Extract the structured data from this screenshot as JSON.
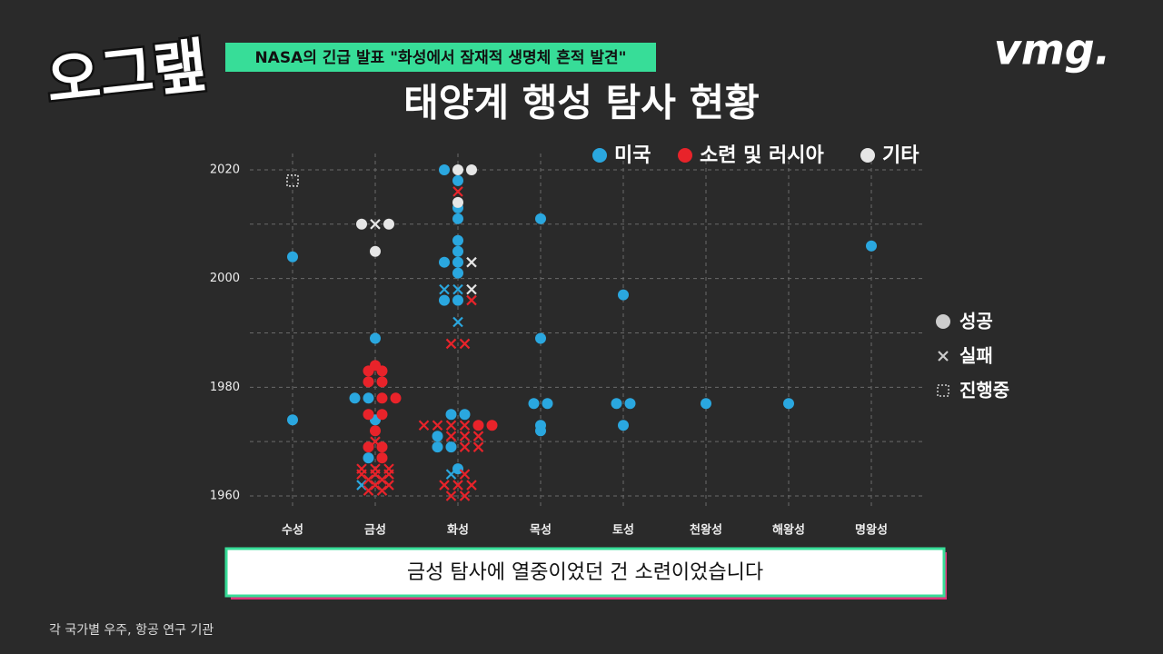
{
  "logo": "오그랲",
  "brand": "vmg.",
  "headline": "NASA의 긴급 발표 \"화성에서 잠재적 생명체 흔적 발견\"",
  "caption": "금성 탐사에 열중이었던 건 소련이었습니다",
  "source": "각 국가별 우주, 항공 연구 기관",
  "chart_data": {
    "type": "scatter",
    "title": "태양계 행성 탐사 현황",
    "categories": [
      "수성",
      "금성",
      "화성",
      "목성",
      "토성",
      "천왕성",
      "해왕성",
      "명왕성"
    ],
    "ylim": [
      1958,
      2023
    ],
    "yticks": [
      1960,
      1980,
      2000,
      2020
    ],
    "ygrid": [
      1960,
      1970,
      1980,
      1990,
      2000,
      2010,
      2020
    ],
    "grid": true,
    "marker_legend": [
      {
        "label": "성공",
        "shape": "circle"
      },
      {
        "label": "실패",
        "shape": "cross"
      },
      {
        "label": "진행중",
        "shape": "square"
      }
    ],
    "series": [
      {
        "name": "미국",
        "color": "#2aa7df",
        "categories": [
          "수성",
          "수성",
          "금성",
          "금성",
          "금성",
          "금성",
          "금성",
          "금성",
          "화성",
          "화성",
          "화성",
          "화성",
          "화성",
          "화성",
          "화성",
          "화성",
          "화성",
          "화성",
          "화성",
          "화성",
          "화성",
          "화성",
          "화성",
          "화성",
          "화성",
          "화성",
          "화성",
          "화성",
          "화성",
          "목성",
          "목성",
          "목성",
          "목성",
          "목성",
          "목성",
          "토성",
          "토성",
          "토성",
          "토성",
          "천왕성",
          "해왕성",
          "명왕성"
        ],
        "values": [
          1974,
          2004,
          1962,
          1967,
          1974,
          1978,
          1978,
          1989,
          1964,
          1965,
          1969,
          1969,
          1971,
          1975,
          1975,
          1992,
          1996,
          1996,
          1998,
          1998,
          2001,
          2003,
          2003,
          2005,
          2007,
          2011,
          2013,
          2018,
          2020,
          1972,
          1973,
          1977,
          1977,
          1989,
          2011,
          1973,
          1977,
          1977,
          1997,
          1977,
          1977,
          2006
        ],
        "markers": [
          "circle",
          "circle",
          "cross",
          "circle",
          "circle",
          "circle",
          "circle",
          "circle",
          "cross",
          "circle",
          "circle",
          "circle",
          "circle",
          "circle",
          "circle",
          "cross",
          "circle",
          "circle",
          "cross",
          "cross",
          "circle",
          "circle",
          "circle",
          "circle",
          "circle",
          "circle",
          "circle",
          "circle",
          "circle",
          "circle",
          "circle",
          "circle",
          "circle",
          "circle",
          "circle",
          "circle",
          "circle",
          "circle",
          "circle",
          "circle",
          "circle",
          "circle"
        ]
      },
      {
        "name": "소련 및 러시아",
        "color": "#e8232a",
        "categories": [
          "금성",
          "금성",
          "금성",
          "금성",
          "금성",
          "금성",
          "금성",
          "금성",
          "금성",
          "금성",
          "금성",
          "금성",
          "금성",
          "금성",
          "금성",
          "금성",
          "금성",
          "금성",
          "금성",
          "금성",
          "금성",
          "금성",
          "금성",
          "금성",
          "금성",
          "금성",
          "화성",
          "화성",
          "화성",
          "화성",
          "화성",
          "화성",
          "화성",
          "화성",
          "화성",
          "화성",
          "화성",
          "화성",
          "화성",
          "화성",
          "화성",
          "화성",
          "화성",
          "화성",
          "화성",
          "화성",
          "화성"
        ],
        "values": [
          1961,
          1961,
          1962,
          1962,
          1963,
          1963,
          1964,
          1964,
          1964,
          1965,
          1965,
          1965,
          1967,
          1969,
          1969,
          1970,
          1972,
          1975,
          1975,
          1978,
          1978,
          1981,
          1981,
          1983,
          1983,
          1984,
          1960,
          1960,
          1962,
          1962,
          1962,
          1964,
          1969,
          1969,
          1971,
          1971,
          1971,
          1973,
          1973,
          1973,
          1973,
          1973,
          1973,
          1988,
          1988,
          1996,
          2016
        ],
        "markers": [
          "cross",
          "cross",
          "cross",
          "cross",
          "cross",
          "cross",
          "cross",
          "cross",
          "cross",
          "cross",
          "cross",
          "cross",
          "circle",
          "circle",
          "circle",
          "cross",
          "circle",
          "circle",
          "circle",
          "circle",
          "circle",
          "circle",
          "circle",
          "circle",
          "circle",
          "circle",
          "cross",
          "cross",
          "cross",
          "cross",
          "cross",
          "cross",
          "cross",
          "cross",
          "cross",
          "cross",
          "cross",
          "cross",
          "cross",
          "cross",
          "cross",
          "circle",
          "circle",
          "cross",
          "cross",
          "cross",
          "cross"
        ]
      },
      {
        "name": "기타",
        "color": "#e6e6e6",
        "categories": [
          "수성",
          "금성",
          "금성",
          "금성",
          "금성",
          "화성",
          "화성",
          "화성",
          "화성",
          "화성"
        ],
        "values": [
          2018,
          2005,
          2010,
          2010,
          2010,
          1998,
          2003,
          2014,
          2020,
          2020
        ],
        "markers": [
          "square",
          "circle",
          "circle",
          "cross",
          "circle",
          "cross",
          "cross",
          "circle",
          "circle",
          "circle"
        ]
      }
    ]
  }
}
